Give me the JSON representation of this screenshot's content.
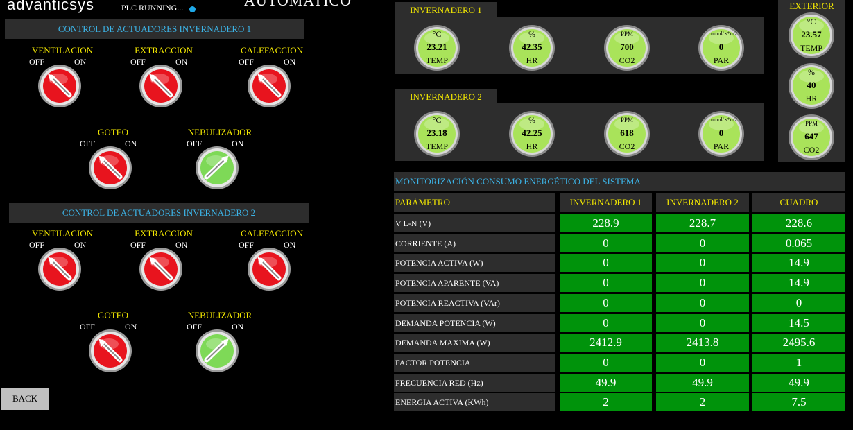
{
  "header": {
    "logo": "advanticsys",
    "plc_status": "PLC RUNNING...",
    "mode": "AUTOMATICO"
  },
  "control": [
    {
      "title": "CONTROL DE ACTUADORES INVERNADERO 1",
      "switches": [
        {
          "name": "VENTILACION",
          "off": "OFF",
          "on": "ON",
          "state": "off"
        },
        {
          "name": "EXTRACCION",
          "off": "OFF",
          "on": "ON",
          "state": "off"
        },
        {
          "name": "CALEFACCION",
          "off": "OFF",
          "on": "ON",
          "state": "off"
        },
        {
          "name": "GOTEO",
          "off": "OFF",
          "on": "ON",
          "state": "off"
        },
        {
          "name": "NEBULIZADOR",
          "off": "OFF",
          "on": "ON",
          "state": "on"
        }
      ]
    },
    {
      "title": "CONTROL DE ACTUADORES INVERNADERO 2",
      "switches": [
        {
          "name": "VENTILACION",
          "off": "OFF",
          "on": "ON",
          "state": "off"
        },
        {
          "name": "EXTRACCION",
          "off": "OFF",
          "on": "ON",
          "state": "off"
        },
        {
          "name": "CALEFACCION",
          "off": "OFF",
          "on": "ON",
          "state": "off"
        },
        {
          "name": "GOTEO",
          "off": "OFF",
          "on": "ON",
          "state": "off"
        },
        {
          "name": "NEBULIZADOR",
          "off": "OFF",
          "on": "ON",
          "state": "on"
        }
      ]
    }
  ],
  "greenhouses": [
    {
      "title": "INVERNADERO 1",
      "gauges": [
        {
          "unit": "°C",
          "value": "23.21",
          "label": "TEMP"
        },
        {
          "unit": "%",
          "value": "42.35",
          "label": "HR"
        },
        {
          "unit": "PPM",
          "value": "700",
          "label": "CO2"
        },
        {
          "unit": "umol/ s*m2",
          "value": "0",
          "label": "PAR"
        }
      ]
    },
    {
      "title": "INVERNADERO 2",
      "gauges": [
        {
          "unit": "°C",
          "value": "23.18",
          "label": "TEMP"
        },
        {
          "unit": "%",
          "value": "42.25",
          "label": "HR"
        },
        {
          "unit": "PPM",
          "value": "618",
          "label": "CO2"
        },
        {
          "unit": "umol/ s*m2",
          "value": "0",
          "label": "PAR"
        }
      ]
    }
  ],
  "exterior": {
    "title": "EXTERIOR",
    "gauges": [
      {
        "unit": "°C",
        "value": "23.57",
        "label": "TEMP"
      },
      {
        "unit": "%",
        "value": "40",
        "label": "HR"
      },
      {
        "unit": "PPM",
        "value": "647",
        "label": "CO2"
      }
    ]
  },
  "energy": {
    "title": "MONITORIZACIÓN CONSUMO ENERGÉTICO DEL SISTEMA",
    "headers": [
      "PARÁMETRO",
      "INVERNADERO 1",
      "INVERNADERO 2",
      "CUADRO"
    ],
    "rows": [
      {
        "param": "V L-N (V)",
        "v1": "228.9",
        "v2": "228.7",
        "v3": "228.6"
      },
      {
        "param": "CORRIENTE (A)",
        "v1": "0",
        "v2": "0",
        "v3": "0.065"
      },
      {
        "param": "POTENCIA ACTIVA (W)",
        "v1": "0",
        "v2": "0",
        "v3": "14.9"
      },
      {
        "param": "POTENCIA APARENTE (VA)",
        "v1": "0",
        "v2": "0",
        "v3": "14.9"
      },
      {
        "param": "POTENCIA REACTIVA (VAr)",
        "v1": "0",
        "v2": "0",
        "v3": "0"
      },
      {
        "param": "DEMANDA POTENCIA (W)",
        "v1": "0",
        "v2": "0",
        "v3": "14.5"
      },
      {
        "param": "DEMANDA MAXIMA (W)",
        "v1": "2412.9",
        "v2": "2413.8",
        "v3": "2495.6"
      },
      {
        "param": "FACTOR POTENCIA",
        "v1": "0",
        "v2": "0",
        "v3": "1"
      },
      {
        "param": "FRECUENCIA RED (Hz)",
        "v1": "49.9",
        "v2": "49.9",
        "v3": "49.9"
      },
      {
        "param": "ENERGIA ACTIVA (KWh)",
        "v1": "2",
        "v2": "2",
        "v3": "7.5"
      }
    ]
  },
  "back_label": "BACK",
  "colors": {
    "banner_text": "#3cb3e6",
    "label_yellow": "#f3e800",
    "panel": "#2d2d2d",
    "value_green": "#00930b",
    "switch_off": "#e8141e",
    "switch_on": "#7ed957",
    "gauge_face": "#a9e35a"
  }
}
